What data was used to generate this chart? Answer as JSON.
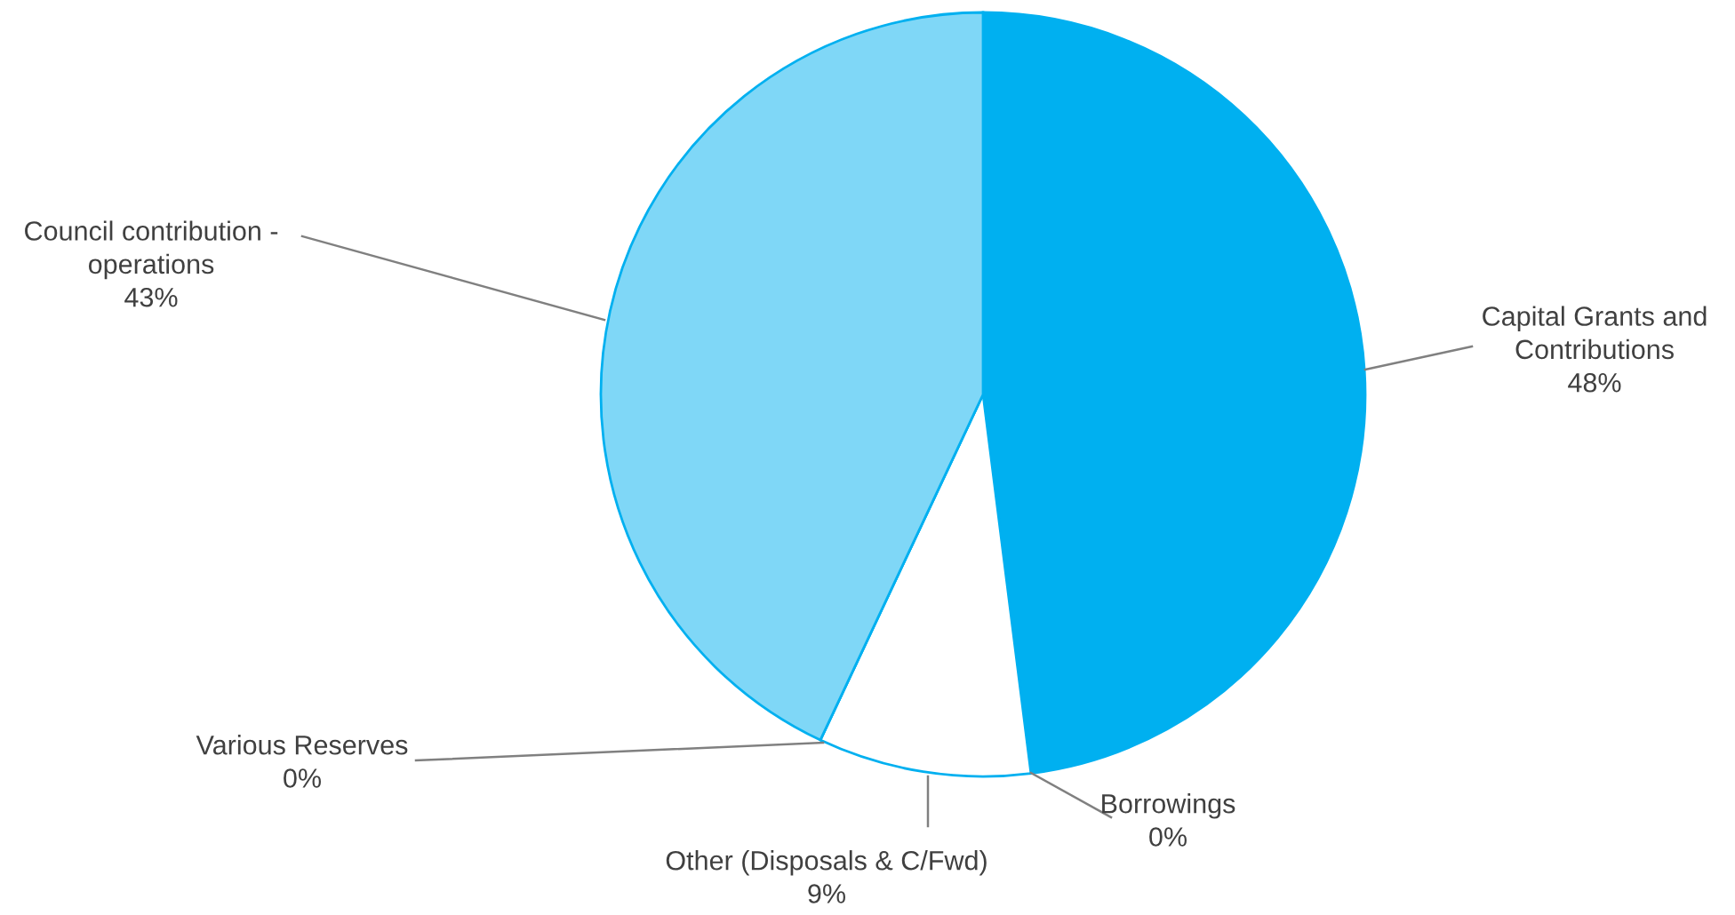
{
  "chart_data": {
    "type": "pie",
    "categories": [
      "Capital Grants and\nContributions",
      "Borrowings",
      "Other (Disposals & C/Fwd)",
      "Various Reserves",
      "Council contribution -\noperations"
    ],
    "values": [
      48,
      0,
      9,
      0,
      43
    ],
    "value_labels": [
      "48%",
      "0%",
      "9%",
      "0%",
      "43%"
    ],
    "colors": [
      "#00b0f0",
      "#00b0f0",
      "#ffffff",
      "#00b0f0",
      "#7fd7f7"
    ]
  }
}
